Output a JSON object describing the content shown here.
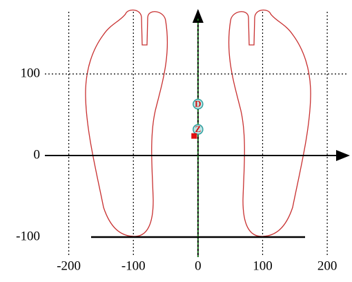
{
  "chart_data": {
    "type": "scatter",
    "xlim": [
      -237,
      233
    ],
    "ylim": [
      -150,
      178
    ],
    "xticks": [
      -200,
      -100,
      0,
      100,
      200
    ],
    "yticks": [
      -100,
      0,
      100
    ],
    "grid": true,
    "series": [
      {
        "color": "#30a0a0",
        "x": [
          0,
          0
        ],
        "values": [
          63,
          32
        ],
        "labels": [
          "D",
          "Z"
        ]
      },
      {
        "color": "#e01010",
        "x": [
          -6
        ],
        "values": [
          24
        ]
      }
    ]
  }
}
